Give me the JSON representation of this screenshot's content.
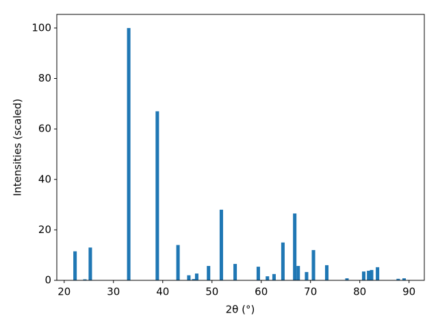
{
  "chart_data": {
    "type": "bar",
    "x_label": "2θ (°)",
    "y_label": "Intensities (scaled)",
    "x": [
      22.2,
      24.2,
      25.3,
      33.1,
      38.9,
      43.1,
      45.3,
      46.3,
      46.9,
      49.3,
      51.9,
      54.7,
      59.4,
      61.25,
      62.6,
      64.4,
      66.8,
      67.5,
      69.2,
      70.6,
      73.3,
      77.4,
      80.8,
      81.8,
      82.4,
      83.6,
      87.8,
      89.0
    ],
    "values": [
      11.5,
      0.4,
      13,
      100,
      67,
      14,
      2,
      0.5,
      2.7,
      5.7,
      28,
      6.5,
      5.4,
      1.6,
      2.5,
      15,
      26.5,
      5.7,
      3.3,
      12,
      6,
      0.8,
      3.5,
      3.8,
      4.1,
      5.2,
      0.6,
      0.8
    ],
    "color": "#1f77b4",
    "xlim": [
      18.5,
      93.1
    ],
    "ylim": [
      0,
      105.4
    ],
    "xticks": [
      20,
      30,
      40,
      50,
      60,
      70,
      80,
      90
    ],
    "yticks": [
      0,
      20,
      40,
      60,
      80,
      100
    ],
    "grid": false
  }
}
